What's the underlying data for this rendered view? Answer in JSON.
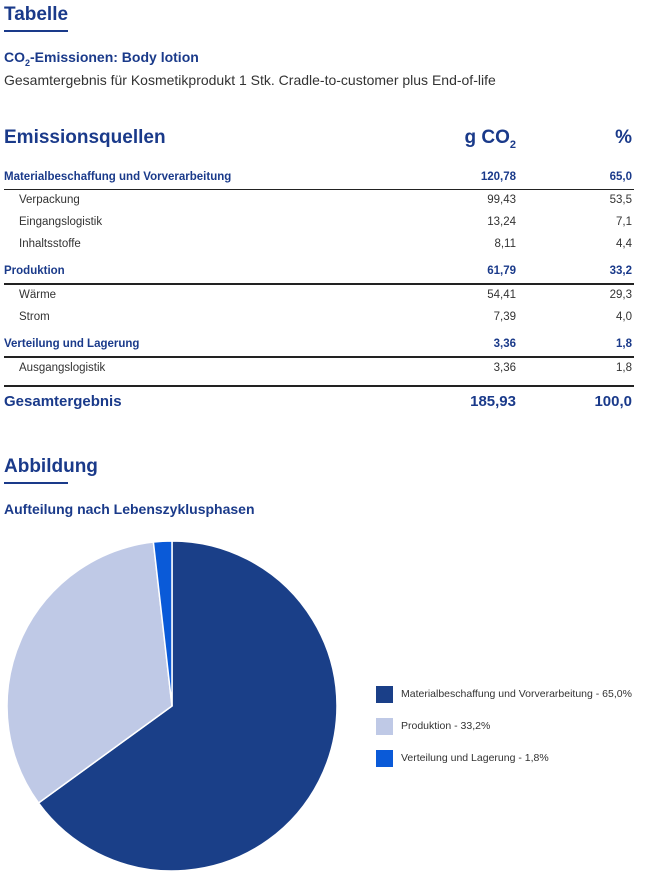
{
  "table_section": {
    "heading": "Tabelle"
  },
  "product": {
    "title_pre": "CO",
    "title_sub": "2",
    "title_post": "-Emissionen: Body lotion",
    "description": "Gesamtergebnis für Kosmetikprodukt 1 Stk. Cradle-to-customer plus End-of-life"
  },
  "table": {
    "headers": {
      "source": "Emissionsquellen",
      "value_pre": "g CO",
      "value_sub": "2",
      "percent": "%"
    },
    "categories": [
      {
        "name": "Materialbeschaffung und Vorverarbeitung",
        "value": "120,78",
        "percent": "65,0",
        "items": [
          {
            "name": "Verpackung",
            "value": "99,43",
            "percent": "53,5"
          },
          {
            "name": "Eingangslogistik",
            "value": "13,24",
            "percent": "7,1"
          },
          {
            "name": "Inhaltsstoffe",
            "value": "8,11",
            "percent": "4,4"
          }
        ]
      },
      {
        "name": "Produktion",
        "value": "61,79",
        "percent": "33,2",
        "items": [
          {
            "name": "Wärme",
            "value": "54,41",
            "percent": "29,3"
          },
          {
            "name": "Strom",
            "value": "7,39",
            "percent": "4,0"
          }
        ]
      },
      {
        "name": "Verteilung und Lagerung",
        "value": "3,36",
        "percent": "1,8",
        "items": [
          {
            "name": "Ausgangslogistik",
            "value": "3,36",
            "percent": "1,8"
          }
        ]
      }
    ],
    "total": {
      "name": "Gesamtergebnis",
      "value": "185,93",
      "percent": "100,0"
    }
  },
  "figure_section": {
    "heading": "Abbildung",
    "title": "Aufteilung nach Lebenszyklusphasen"
  },
  "colors": {
    "accent": "#1a3a8a",
    "slice1": "#1a3f88",
    "slice2": "#bfc9e6",
    "slice3": "#0a5ad8"
  },
  "chart_data": {
    "type": "pie",
    "title": "Aufteilung nach Lebenszyklusphasen",
    "labels": [
      "Materialbeschaffung und Vorverarbeitung - 65,0%",
      "Produktion - 33,2%",
      "Verteilung und Lagerung - 1,8%"
    ],
    "values": [
      65.0,
      33.2,
      1.8
    ],
    "colors": [
      "#1a3f88",
      "#bfc9e6",
      "#0a5ad8"
    ],
    "legend_position": "right"
  }
}
